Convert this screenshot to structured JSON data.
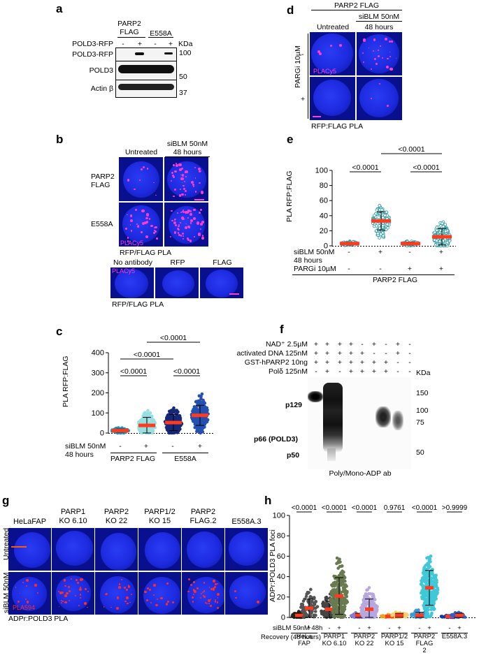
{
  "panels": {
    "a": "a",
    "b": "b",
    "c": "c",
    "d": "d",
    "e": "e",
    "f": "f",
    "g": "g",
    "h": "h"
  },
  "a": {
    "head1": "PARP2",
    "head2": "FLAG",
    "head3": "E558A",
    "row_label": "POLD3-RFP",
    "signs": [
      "-",
      "+",
      "-",
      "+"
    ],
    "kda": "KDa",
    "bands": [
      "POLD3-RFP",
      "POLD3",
      "Actin β"
    ],
    "markers": [
      "100",
      "50",
      "37"
    ]
  },
  "b": {
    "col1": "Untreated",
    "col2a": "siBLM 50nM",
    "col2b": "48 hours",
    "row1a": "PARP2",
    "row1b": "FLAG",
    "row2": "E558A",
    "stain": "PLACy5",
    "caption": "RFP/FLAG PLA",
    "ctrl_cols": [
      "No antibody",
      "RFP",
      "FLAG"
    ],
    "ctrl_stain": "PLACy5",
    "ctrl_caption": "RFP/FLAG PLA",
    "scale": "10µm"
  },
  "c": {
    "ylabel": "PLA RFP:FLAG",
    "yticks": [
      "0",
      "100",
      "200",
      "300",
      "400"
    ],
    "p_values": [
      "<0.0001",
      "<0.0001",
      "<0.0001",
      "<0.0001"
    ],
    "row1": "siBLM 50nM",
    "row2": "48 hours",
    "signs": [
      "-",
      "+",
      "-",
      "+"
    ],
    "groups": [
      "PARP2 FLAG",
      "E558A"
    ]
  },
  "d": {
    "top": "PARP2 FLAG",
    "col1": "Untreated",
    "col2a": "siBLM 50nM",
    "col2b": "48 hours",
    "side": "PARGi 10µM",
    "minus": "-",
    "plus": "+",
    "stain": "PLACy5",
    "caption": "RFP:FLAG PLA",
    "scale": "10µm"
  },
  "e": {
    "ylabel": "PLA RFP:FLAG",
    "yticks": [
      "0",
      "20",
      "40",
      "60",
      "80",
      "100"
    ],
    "p_values": [
      "<0.0001",
      "<0.0001",
      "<0.0001"
    ],
    "row1": "siBLM 50nM",
    "row2": "48 hours",
    "row3": "PARGi 10µM",
    "signs1": [
      "-",
      "+",
      "-",
      "+"
    ],
    "signs3": [
      "-",
      "-",
      "+",
      "+"
    ],
    "group": "PARP2 FLAG"
  },
  "f": {
    "rows": [
      "NAD⁺ 2.5µM",
      "activated DNA 125nM",
      "GST-hPARP2 10ng",
      "Polδ 125nM"
    ],
    "signs": [
      [
        "+",
        "+",
        "+",
        "+",
        "-",
        "+",
        "-",
        "+",
        "-"
      ],
      [
        "+",
        "+",
        "+",
        "+",
        "+",
        "-",
        "-",
        "+",
        "-"
      ],
      [
        "+",
        "+",
        "+",
        "+",
        "+",
        "+",
        "+",
        "-",
        "-"
      ],
      [
        "-",
        "+",
        "-",
        "+",
        "+",
        "+",
        "+",
        "-",
        "-"
      ]
    ],
    "kda": "KDa",
    "markers": [
      "150",
      "100",
      "75",
      "50"
    ],
    "bands": [
      "p129",
      "p66 (POLD3)",
      "p50"
    ],
    "caption": "Poly/Mono-ADP ab"
  },
  "g": {
    "cols": [
      "HeLaFAP",
      "PARP1\nKO 6.10",
      "PARP2\nKO 22",
      "PARP1/2\nKO 15",
      "PARP2\nFLAG.2",
      "E558A.3"
    ],
    "row1": "Untreated",
    "row2": "siBLM 50nM",
    "stain": "PLA594",
    "caption": "ADPr:POLD3 PLA",
    "scale": "10µm"
  },
  "h": {
    "ylabel": "ADPr:POLD3 PLA foci",
    "yticks": [
      "0",
      "20",
      "40",
      "60",
      "80",
      "100"
    ],
    "p_values": [
      "<0.0001",
      "<0.0001",
      "<0.0001",
      "0.9761",
      "<0.0001",
      ">0.9999"
    ],
    "row1": "siBLM 50nM 48h",
    "row2": "Recovery (48 hours)",
    "signs": [
      "-",
      "+",
      "-",
      "+",
      "-",
      "+",
      "-",
      "+",
      "-",
      "+",
      "-",
      "+"
    ],
    "groups": [
      "HeLa\nFAP",
      "PARP1\nKO 6.10",
      "PARP2\nKO 22",
      "PARP1/2\nKO 15",
      "PARP2\nFLAG\n2",
      "E558A.3"
    ]
  },
  "chart_data": [
    {
      "type": "scatter",
      "panel": "c",
      "ylabel": "PLA RFP:FLAG",
      "ylim": [
        0,
        400
      ],
      "categories": [
        "PARP2 FLAG -",
        "PARP2 FLAG +",
        "E558A -",
        "E558A +"
      ],
      "series": [
        {
          "values": [
            12,
            38,
            52,
            88
          ]
        }
      ],
      "colors": [
        "#2a8fb0",
        "#98e0e0",
        "#162878",
        "#2550b0"
      ]
    },
    {
      "type": "scatter",
      "panel": "e",
      "ylabel": "PLA RFP:FLAG",
      "ylim": [
        0,
        100
      ],
      "categories": [
        "- / -",
        "+ / -",
        "- / +",
        "+ / +"
      ],
      "series": [
        {
          "values": [
            3,
            33,
            3,
            12
          ]
        }
      ]
    },
    {
      "type": "scatter",
      "panel": "h",
      "ylabel": "ADPr:POLD3 PLA foci",
      "ylim": [
        0,
        100
      ],
      "categories": [
        "HeLa FAP -",
        "HeLa FAP +",
        "PARP1 KO 6.10 -",
        "PARP1 KO 6.10 +",
        "PARP2 KO 22 -",
        "PARP2 KO 22 +",
        "PARP1/2 KO 15 -",
        "PARP1/2 KO 15 +",
        "PARP2 FLAG 2 -",
        "PARP2 FLAG 2 +",
        "E558A.3 -",
        "E558A.3 +"
      ],
      "series": [
        {
          "values": [
            2,
            9,
            8,
            21,
            2,
            8,
            1,
            2,
            2,
            29,
            1,
            2
          ]
        }
      ],
      "colors": [
        "#222222",
        "#555555",
        "#444444",
        "#6a7a50",
        "#8a7ac8",
        "#b7a8e0",
        "#f0a020",
        "#f7d070",
        "#3a9ad8",
        "#40c8d8",
        "#1838a8",
        "#3060c8"
      ]
    }
  ]
}
